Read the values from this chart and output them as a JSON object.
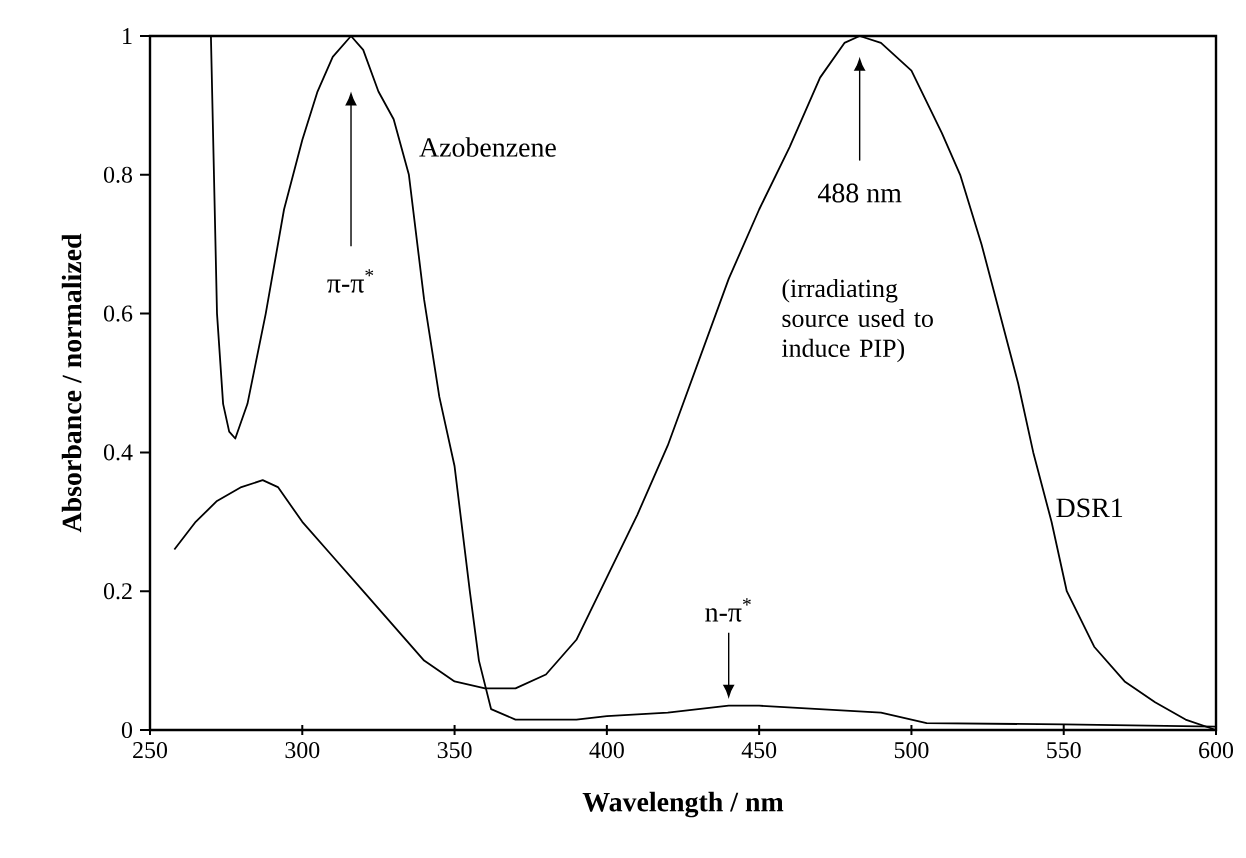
{
  "chart_data": {
    "type": "line",
    "xlabel": "Wavelength / nm",
    "ylabel": "Absorbance / normalized",
    "xlim": [
      250,
      600
    ],
    "ylim": [
      0,
      1
    ],
    "xticks": [
      250,
      300,
      350,
      400,
      450,
      500,
      550,
      600
    ],
    "yticks": [
      0,
      0.2,
      0.4,
      0.6,
      0.8,
      1
    ],
    "grid": false,
    "legend": false,
    "marker": "none",
    "line_style": "solid",
    "series": [
      {
        "name": "Azobenzene",
        "color": "#000000",
        "x": [
          270,
          271,
          272,
          274,
          276,
          278,
          282,
          288,
          294,
          300,
          305,
          310,
          316,
          320,
          325,
          330,
          335,
          340,
          345,
          350,
          355,
          358,
          362,
          370,
          390,
          400,
          420,
          440,
          450,
          470,
          490,
          505,
          550,
          600
        ],
        "values": [
          1.0,
          0.8,
          0.6,
          0.47,
          0.43,
          0.42,
          0.47,
          0.6,
          0.75,
          0.85,
          0.92,
          0.97,
          1.0,
          0.98,
          0.92,
          0.88,
          0.8,
          0.62,
          0.48,
          0.38,
          0.2,
          0.1,
          0.03,
          0.015,
          0.015,
          0.02,
          0.025,
          0.035,
          0.035,
          0.03,
          0.025,
          0.01,
          0.008,
          0.005
        ]
      },
      {
        "name": "DSR1",
        "color": "#000000",
        "x": [
          258,
          265,
          272,
          280,
          287,
          292,
          300,
          310,
          320,
          330,
          340,
          350,
          360,
          370,
          380,
          390,
          400,
          410,
          420,
          430,
          440,
          450,
          460,
          470,
          478,
          483,
          490,
          500,
          510,
          516,
          523,
          529,
          535,
          540,
          546,
          551,
          560,
          570,
          580,
          590,
          600
        ],
        "values": [
          0.26,
          0.3,
          0.33,
          0.35,
          0.36,
          0.35,
          0.3,
          0.25,
          0.2,
          0.15,
          0.1,
          0.07,
          0.06,
          0.06,
          0.08,
          0.13,
          0.22,
          0.31,
          0.41,
          0.53,
          0.65,
          0.75,
          0.84,
          0.94,
          0.99,
          1.0,
          0.99,
          0.95,
          0.86,
          0.8,
          0.7,
          0.6,
          0.5,
          0.4,
          0.3,
          0.2,
          0.12,
          0.07,
          0.04,
          0.015,
          0.0
        ]
      }
    ],
    "annotations": [
      "π-π$^{*}$",
      "488 nm",
      "(irradiating source used to induce PIP)",
      "n-π$^{*}$"
    ]
  }
}
